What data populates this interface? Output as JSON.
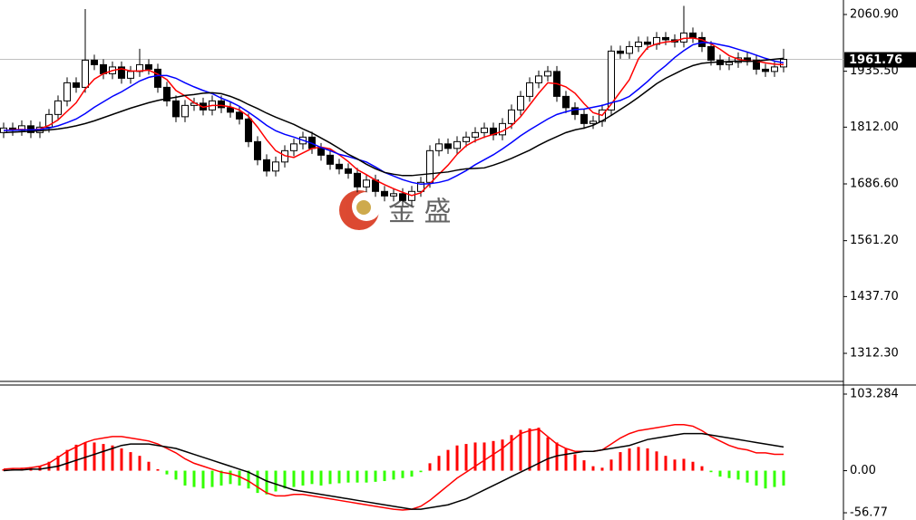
{
  "watermark": "金 盛",
  "chart_data": [
    {
      "type": "candlestick",
      "open": [
        1800,
        1810,
        1805,
        1815,
        1800,
        1812,
        1840,
        1870,
        1910,
        1900,
        1960,
        1950,
        1930,
        1945,
        1920,
        1935,
        1950,
        1940,
        1900,
        1870,
        1835,
        1860,
        1865,
        1850,
        1870,
        1855,
        1845,
        1830,
        1780,
        1740,
        1715,
        1735,
        1760,
        1775,
        1790,
        1765,
        1750,
        1730,
        1720,
        1710,
        1680,
        1695,
        1670,
        1660,
        1665,
        1650,
        1670,
        1690,
        1760,
        1775,
        1765,
        1780,
        1790,
        1800,
        1810,
        1795,
        1820,
        1850,
        1880,
        1910,
        1925,
        1935,
        1880,
        1855,
        1840,
        1820,
        1825,
        1850,
        1980,
        1975,
        1990,
        2000,
        1995,
        2010,
        2005,
        2000,
        2020,
        2010,
        1990,
        1960,
        1950,
        1955,
        1965,
        1960,
        1940,
        1935,
        1945
      ],
      "high": [
        1822,
        1822,
        1827,
        1827,
        1824,
        1852,
        1882,
        1922,
        1922,
        2073,
        1972,
        1962,
        1957,
        1957,
        1947,
        1985,
        1962,
        1952,
        1912,
        1882,
        1872,
        1877,
        1877,
        1882,
        1882,
        1867,
        1857,
        1842,
        1792,
        1752,
        1747,
        1772,
        1787,
        1802,
        1802,
        1777,
        1762,
        1742,
        1732,
        1722,
        1707,
        1707,
        1682,
        1677,
        1677,
        1682,
        1702,
        1772,
        1787,
        1787,
        1792,
        1802,
        1812,
        1822,
        1822,
        1832,
        1862,
        1892,
        1922,
        1937,
        1947,
        1947,
        1892,
        1867,
        1852,
        1837,
        1862,
        1992,
        1992,
        2002,
        2012,
        2012,
        2022,
        2022,
        2017,
        2080,
        2032,
        2022,
        2002,
        1972,
        1967,
        1977,
        1977,
        1972,
        1952,
        1957,
        1985
      ],
      "low": [
        1788,
        1793,
        1793,
        1788,
        1788,
        1800,
        1828,
        1858,
        1888,
        1888,
        1938,
        1918,
        1918,
        1908,
        1908,
        1923,
        1928,
        1888,
        1858,
        1823,
        1823,
        1848,
        1838,
        1838,
        1843,
        1833,
        1818,
        1768,
        1728,
        1703,
        1703,
        1723,
        1748,
        1763,
        1753,
        1738,
        1718,
        1708,
        1698,
        1668,
        1668,
        1658,
        1648,
        1648,
        1638,
        1638,
        1658,
        1678,
        1748,
        1753,
        1753,
        1768,
        1778,
        1788,
        1783,
        1783,
        1808,
        1838,
        1868,
        1898,
        1913,
        1868,
        1843,
        1828,
        1808,
        1808,
        1813,
        1838,
        1963,
        1963,
        1978,
        1983,
        1983,
        1993,
        1988,
        1988,
        1998,
        1978,
        1948,
        1938,
        1938,
        1943,
        1948,
        1928,
        1923,
        1923,
        1933
      ],
      "close": [
        1810,
        1805,
        1815,
        1800,
        1812,
        1840,
        1870,
        1910,
        1900,
        1960,
        1950,
        1930,
        1945,
        1920,
        1935,
        1950,
        1940,
        1900,
        1870,
        1835,
        1860,
        1865,
        1850,
        1870,
        1855,
        1845,
        1830,
        1780,
        1740,
        1715,
        1735,
        1760,
        1775,
        1790,
        1765,
        1750,
        1730,
        1720,
        1710,
        1680,
        1695,
        1670,
        1660,
        1665,
        1650,
        1670,
        1690,
        1760,
        1775,
        1765,
        1780,
        1790,
        1800,
        1810,
        1795,
        1820,
        1850,
        1880,
        1910,
        1925,
        1935,
        1880,
        1855,
        1840,
        1820,
        1825,
        1850,
        1980,
        1975,
        1990,
        2000,
        1995,
        2010,
        2005,
        2000,
        2020,
        2010,
        1990,
        1960,
        1950,
        1955,
        1965,
        1960,
        1940,
        1935,
        1945,
        1961.76
      ],
      "up_color": "#ffffff",
      "down_color": "#000000",
      "price_line_color": "#c0c0c0",
      "lines": [
        {
          "color": "#ff0000",
          "values": [
            1805,
            1806,
            1807,
            1806,
            1808,
            1816,
            1828,
            1847,
            1866,
            1896,
            1918,
            1930,
            1937,
            1941,
            1936,
            1936,
            1938,
            1929,
            1917,
            1893,
            1881,
            1866,
            1856,
            1860,
            1860,
            1857,
            1850,
            1836,
            1812,
            1784,
            1760,
            1749,
            1745,
            1755,
            1765,
            1768,
            1764,
            1751,
            1736,
            1718,
            1707,
            1695,
            1685,
            1676,
            1668,
            1661,
            1667,
            1687,
            1708,
            1728,
            1752,
            1771,
            1782,
            1790,
            1796,
            1803,
            1815,
            1835,
            1861,
            1887,
            1910,
            1908,
            1901,
            1887,
            1864,
            1844,
            1838,
            1863,
            1890,
            1917,
            1963,
            1988,
            1996,
            2000,
            2002,
            2008,
            2009,
            2005,
            1996,
            1984,
            1970,
            1962,
            1958,
            1958,
            1954,
            1951,
            1950
          ]
        },
        {
          "color": "#0000ff",
          "values": [
            1805,
            1805,
            1806,
            1806,
            1807,
            1810,
            1815,
            1822,
            1830,
            1842,
            1856,
            1868,
            1880,
            1890,
            1902,
            1914,
            1922,
            1926,
            1926,
            1920,
            1910,
            1901,
            1893,
            1886,
            1876,
            1868,
            1858,
            1845,
            1831,
            1816,
            1804,
            1796,
            1790,
            1783,
            1776,
            1767,
            1760,
            1752,
            1747,
            1741,
            1735,
            1724,
            1712,
            1704,
            1696,
            1690,
            1686,
            1687,
            1690,
            1695,
            1705,
            1716,
            1729,
            1740,
            1751,
            1764,
            1778,
            1793,
            1806,
            1818,
            1830,
            1840,
            1846,
            1851,
            1852,
            1856,
            1860,
            1866,
            1871,
            1880,
            1896,
            1913,
            1932,
            1948,
            1966,
            1981,
            1994,
            1999,
            1998,
            1994,
            1990,
            1984,
            1978,
            1971,
            1964,
            1958,
            1954
          ]
        },
        {
          "color": "#000000",
          "values": [
            1800,
            1801,
            1802,
            1803,
            1804,
            1806,
            1808,
            1811,
            1815,
            1820,
            1826,
            1833,
            1840,
            1847,
            1854,
            1860,
            1866,
            1871,
            1875,
            1878,
            1882,
            1884,
            1887,
            1888,
            1886,
            1880,
            1872,
            1862,
            1853,
            1843,
            1834,
            1826,
            1818,
            1808,
            1799,
            1788,
            1777,
            1765,
            1752,
            1742,
            1730,
            1720,
            1712,
            1708,
            1705,
            1705,
            1707,
            1709,
            1711,
            1713,
            1717,
            1720,
            1721,
            1722,
            1728,
            1735,
            1743,
            1752,
            1761,
            1772,
            1782,
            1791,
            1800,
            1806,
            1810,
            1816,
            1826,
            1838,
            1851,
            1864,
            1878,
            1893,
            1908,
            1920,
            1930,
            1940,
            1948,
            1953,
            1955,
            1956,
            1957,
            1958,
            1957,
            1958,
            1960,
            1962,
            1964
          ]
        }
      ],
      "ylim": [
        1250.3,
        2092.9
      ],
      "yticks": [
        {
          "value": 2060.9,
          "label": "2060.90"
        },
        {
          "value": 1935.5,
          "label": "1935.50"
        },
        {
          "value": 1812,
          "label": "1812.00"
        },
        {
          "value": 1686.6,
          "label": "1686.60"
        },
        {
          "value": 1561.2,
          "label": "1561.20"
        },
        {
          "value": 1437.7,
          "label": "1437.70"
        },
        {
          "value": 1312.3,
          "label": "1312.30"
        }
      ]
    },
    {
      "type": "macd",
      "histogram": [
        2,
        3,
        4,
        5,
        6,
        12,
        20,
        28,
        35,
        38,
        38,
        36,
        34,
        30,
        25,
        20,
        12,
        2,
        -5,
        -12,
        -20,
        -22,
        -24,
        -22,
        -20,
        -18,
        -20,
        -24,
        -30,
        -32,
        -28,
        -24,
        -22,
        -20,
        -18,
        -20,
        -18,
        -17,
        -16,
        -16,
        -16,
        -15,
        -14,
        -12,
        -10,
        -8,
        -2,
        10,
        20,
        28,
        34,
        36,
        38,
        38,
        40,
        42,
        48,
        55,
        57,
        58,
        45,
        38,
        30,
        22,
        14,
        6,
        4,
        15,
        25,
        30,
        32,
        30,
        26,
        20,
        15,
        16,
        12,
        6,
        -2,
        -8,
        -10,
        -12,
        -16,
        -20,
        -24,
        -22,
        -20
      ],
      "pos_color": "#ff0000",
      "neg_color": "#33ff00",
      "lines": [
        {
          "color": "#ff0000",
          "values": [
            2,
            3,
            3,
            4,
            6,
            10,
            18,
            26,
            32,
            38,
            42,
            44,
            46,
            46,
            44,
            42,
            40,
            36,
            30,
            24,
            16,
            10,
            6,
            2,
            -2,
            -4,
            -8,
            -14,
            -22,
            -30,
            -34,
            -34,
            -32,
            -32,
            -34,
            -36,
            -38,
            -40,
            -42,
            -44,
            -46,
            -48,
            -50,
            -52,
            -53,
            -52,
            -48,
            -40,
            -30,
            -20,
            -10,
            -2,
            6,
            14,
            22,
            30,
            40,
            50,
            54,
            56,
            46,
            36,
            30,
            26,
            26,
            26,
            28,
            36,
            44,
            50,
            54,
            56,
            58,
            60,
            62,
            62,
            60,
            54,
            46,
            40,
            34,
            30,
            28,
            24,
            24,
            22,
            22
          ]
        },
        {
          "color": "#000000",
          "values": [
            0,
            1,
            1,
            2,
            2,
            4,
            6,
            10,
            14,
            18,
            22,
            26,
            30,
            34,
            36,
            36,
            36,
            34,
            32,
            30,
            26,
            22,
            18,
            14,
            10,
            6,
            2,
            -2,
            -8,
            -14,
            -18,
            -22,
            -26,
            -28,
            -30,
            -32,
            -34,
            -36,
            -38,
            -40,
            -42,
            -44,
            -46,
            -48,
            -50,
            -52,
            -52,
            -50,
            -48,
            -46,
            -42,
            -38,
            -32,
            -26,
            -20,
            -14,
            -8,
            -2,
            4,
            10,
            16,
            20,
            22,
            24,
            26,
            26,
            28,
            30,
            32,
            34,
            38,
            42,
            44,
            46,
            48,
            50,
            50,
            50,
            48,
            46,
            44,
            42,
            40,
            38,
            36,
            34,
            32
          ]
        }
      ],
      "ylim": [
        -66.5,
        115.5
      ],
      "yticks": [
        103.284,
        {
          "value": 0,
          "label": "0.00"
        },
        -56.77
      ]
    }
  ]
}
